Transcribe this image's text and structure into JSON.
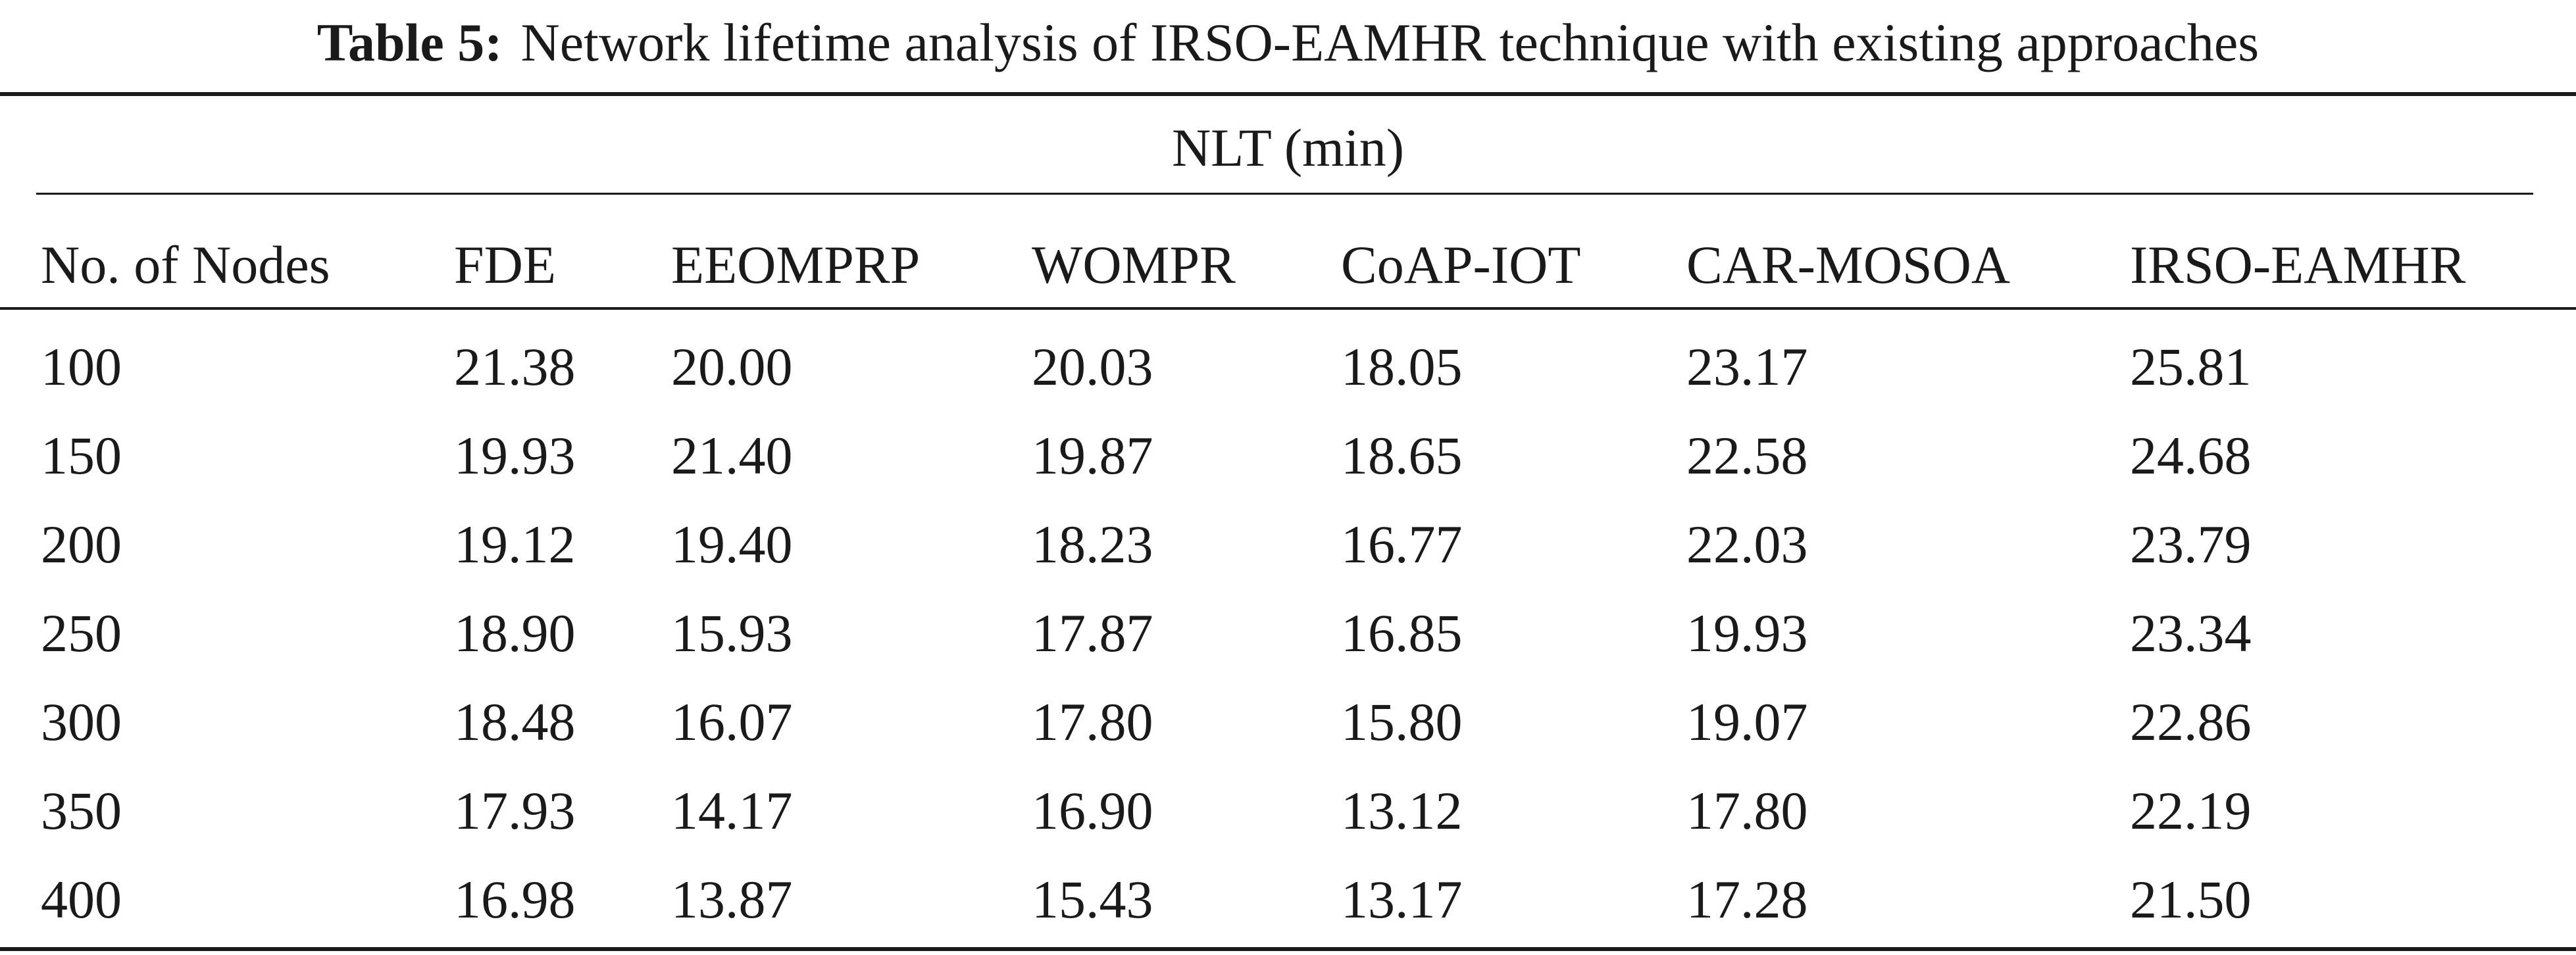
{
  "caption": {
    "label": "Table 5:",
    "text": "Network lifetime analysis of IRSO-EAMHR technique with existing approaches"
  },
  "table": {
    "group_header": "NLT (min)",
    "columns": [
      "No. of Nodes",
      "FDE",
      "EEOMPRP",
      "WOMPR",
      "CoAP-IOT",
      "CAR-MOSOA",
      "IRSO-EAMHR"
    ],
    "rows": [
      [
        "100",
        "21.38",
        "20.00",
        "20.03",
        "18.05",
        "23.17",
        "25.81"
      ],
      [
        "150",
        "19.93",
        "21.40",
        "19.87",
        "18.65",
        "22.58",
        "24.68"
      ],
      [
        "200",
        "19.12",
        "19.40",
        "18.23",
        "16.77",
        "22.03",
        "23.79"
      ],
      [
        "250",
        "18.90",
        "15.93",
        "17.87",
        "16.85",
        "19.93",
        "23.34"
      ],
      [
        "300",
        "18.48",
        "16.07",
        "17.80",
        "15.80",
        "19.07",
        "22.86"
      ],
      [
        "350",
        "17.93",
        "14.17",
        "16.90",
        "13.12",
        "17.80",
        "22.19"
      ],
      [
        "400",
        "16.98",
        "13.87",
        "15.43",
        "13.17",
        "17.28",
        "21.50"
      ]
    ]
  }
}
